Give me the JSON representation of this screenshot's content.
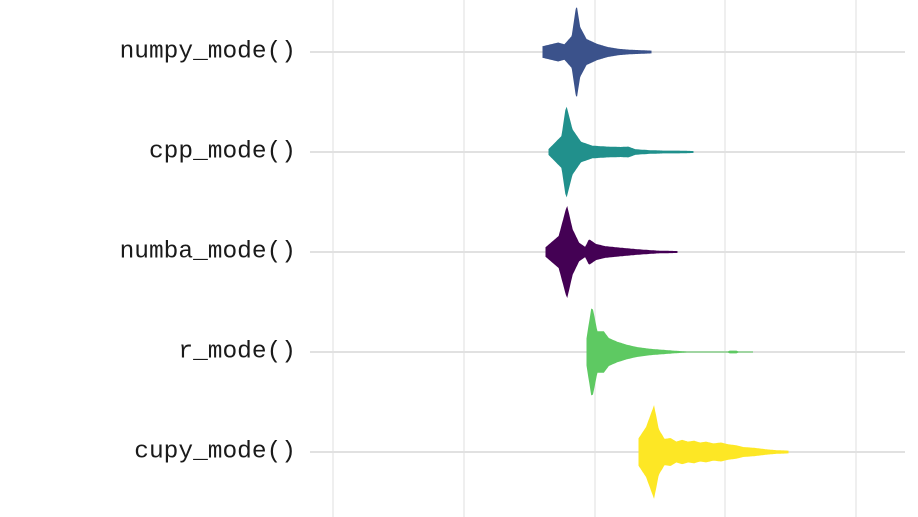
{
  "chart_data": {
    "type": "violin",
    "orientation": "horizontal",
    "title": "",
    "xlabel": "",
    "ylabel": "",
    "x_tick_labels_shown": false,
    "grid": true,
    "legend": "none",
    "categories": [
      "numpy_mode()",
      "cpp_mode()",
      "numba_mode()",
      "r_mode()",
      "cupy_mode()"
    ],
    "series": [
      {
        "category": "numpy_mode()",
        "color": "#3b528b",
        "profile": [
          [
            0,
            0.12
          ],
          [
            0.14,
            0.2
          ],
          [
            0.2,
            0.16
          ],
          [
            0.27,
            0.35
          ],
          [
            0.31,
            1.0
          ],
          [
            0.34,
            0.55
          ],
          [
            0.4,
            0.28
          ],
          [
            0.5,
            0.17
          ],
          [
            0.6,
            0.1
          ],
          [
            0.7,
            0.06
          ],
          [
            0.8,
            0.04
          ],
          [
            0.9,
            0.03
          ],
          [
            1.0,
            0.02
          ]
        ]
      },
      {
        "category": "cpp_mode()",
        "color": "#21908c",
        "profile": [
          [
            0,
            0.06
          ],
          [
            0.09,
            0.35
          ],
          [
            0.12,
            1.0
          ],
          [
            0.16,
            0.5
          ],
          [
            0.22,
            0.22
          ],
          [
            0.3,
            0.13
          ],
          [
            0.4,
            0.11
          ],
          [
            0.5,
            0.1
          ],
          [
            0.55,
            0.11
          ],
          [
            0.6,
            0.05
          ],
          [
            0.7,
            0.03
          ],
          [
            0.8,
            0.02
          ],
          [
            0.9,
            0.02
          ],
          [
            1.0,
            0.01
          ]
        ]
      },
      {
        "category": "numba_mode()",
        "color": "#440154",
        "profile": [
          [
            0,
            0.1
          ],
          [
            0.1,
            0.35
          ],
          [
            0.16,
            1.0
          ],
          [
            0.2,
            0.5
          ],
          [
            0.25,
            0.2
          ],
          [
            0.3,
            0.1
          ],
          [
            0.33,
            0.27
          ],
          [
            0.38,
            0.17
          ],
          [
            0.45,
            0.12
          ],
          [
            0.55,
            0.09
          ],
          [
            0.7,
            0.05
          ],
          [
            0.85,
            0.02
          ],
          [
            1.0,
            0.01
          ]
        ]
      },
      {
        "category": "r_mode()",
        "color": "#5ec962",
        "profile": [
          [
            0,
            0.3
          ],
          [
            0.03,
            1.0
          ],
          [
            0.06,
            0.45
          ],
          [
            0.1,
            0.45
          ],
          [
            0.13,
            0.3
          ],
          [
            0.18,
            0.22
          ],
          [
            0.24,
            0.15
          ],
          [
            0.3,
            0.1
          ],
          [
            0.38,
            0.06
          ],
          [
            0.45,
            0.04
          ],
          [
            0.52,
            0.02
          ],
          [
            0.6,
            0
          ],
          [
            0.85,
            0
          ],
          [
            0.86,
            0.02
          ],
          [
            0.9,
            0.02
          ],
          [
            0.91,
            0
          ],
          [
            1.0,
            0
          ]
        ]
      },
      {
        "category": "cupy_mode()",
        "color": "#fde725",
        "profile": [
          [
            0,
            0.3
          ],
          [
            0.05,
            0.55
          ],
          [
            0.1,
            1.0
          ],
          [
            0.13,
            0.5
          ],
          [
            0.17,
            0.28
          ],
          [
            0.21,
            0.3
          ],
          [
            0.25,
            0.22
          ],
          [
            0.29,
            0.26
          ],
          [
            0.33,
            0.22
          ],
          [
            0.37,
            0.24
          ],
          [
            0.41,
            0.2
          ],
          [
            0.45,
            0.22
          ],
          [
            0.5,
            0.18
          ],
          [
            0.55,
            0.2
          ],
          [
            0.6,
            0.16
          ],
          [
            0.65,
            0.14
          ],
          [
            0.7,
            0.1
          ],
          [
            0.78,
            0.08
          ],
          [
            0.85,
            0.05
          ],
          [
            0.92,
            0.03
          ],
          [
            1.0,
            0.02
          ]
        ]
      }
    ]
  }
}
